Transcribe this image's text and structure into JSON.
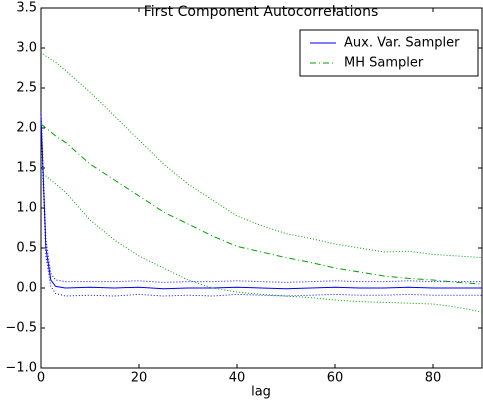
{
  "chart_data": {
    "type": "line",
    "title": "First Component Autocorrelations",
    "x_label": "lag",
    "x": [
      0,
      1,
      2,
      3,
      5,
      10,
      15,
      20,
      25,
      30,
      35,
      40,
      45,
      50,
      55,
      60,
      65,
      70,
      75,
      80,
      85,
      90
    ],
    "series": [
      {
        "name": "Aux. Var. Sampler",
        "color": "#0000ff",
        "style": "solid",
        "values": [
          2.15,
          0.5,
          0.1,
          0.02,
          0.0,
          0.01,
          0.0,
          0.01,
          -0.01,
          0.0,
          0.0,
          0.01,
          0.0,
          -0.01,
          0.0,
          0.01,
          0.0,
          0.0,
          0.01,
          0.0,
          0.0,
          0.0
        ],
        "upper": [
          2.2,
          0.6,
          0.18,
          0.1,
          0.08,
          0.08,
          0.08,
          0.09,
          0.07,
          0.08,
          0.08,
          0.09,
          0.08,
          0.07,
          0.08,
          0.09,
          0.08,
          0.08,
          0.09,
          0.08,
          0.08,
          0.08
        ],
        "lower": [
          2.05,
          0.4,
          0.02,
          -0.07,
          -0.1,
          -0.09,
          -0.1,
          -0.08,
          -0.1,
          -0.09,
          -0.1,
          -0.08,
          -0.09,
          -0.1,
          -0.09,
          -0.08,
          -0.09,
          -0.09,
          -0.08,
          -0.09,
          -0.09,
          -0.09
        ]
      },
      {
        "name": "MH Sampler",
        "color": "#00a000",
        "style": "dashdot",
        "values": [
          2.05,
          2.0,
          1.95,
          1.9,
          1.82,
          1.55,
          1.35,
          1.15,
          0.95,
          0.8,
          0.65,
          0.52,
          0.45,
          0.38,
          0.32,
          0.25,
          0.2,
          0.15,
          0.12,
          0.1,
          0.07,
          0.05
        ],
        "upper": [
          2.95,
          2.9,
          2.86,
          2.82,
          2.72,
          2.45,
          2.15,
          1.85,
          1.55,
          1.3,
          1.1,
          0.9,
          0.78,
          0.68,
          0.62,
          0.55,
          0.5,
          0.45,
          0.46,
          0.42,
          0.4,
          0.38
        ],
        "lower": [
          1.45,
          1.4,
          1.35,
          1.3,
          1.2,
          0.85,
          0.6,
          0.4,
          0.25,
          0.1,
          0.0,
          -0.05,
          -0.08,
          -0.1,
          -0.12,
          -0.15,
          -0.17,
          -0.18,
          -0.19,
          -0.2,
          -0.24,
          -0.3
        ]
      }
    ],
    "xlim": [
      0,
      90
    ],
    "xticks": [
      0,
      20,
      40,
      60,
      80
    ],
    "ylim": [
      -1,
      3.5
    ],
    "yticks": [
      {
        "value": -1,
        "label": "−1.0"
      },
      {
        "value": -0.5,
        "label": "−0.5"
      },
      {
        "value": 0,
        "label": "0.0"
      },
      {
        "value": 0.5,
        "label": "0.5"
      },
      {
        "value": 1,
        "label": "1.0"
      },
      {
        "value": 1.5,
        "label": "1.5"
      },
      {
        "value": 2,
        "label": "2.0"
      },
      {
        "value": 2.5,
        "label": "2.5"
      },
      {
        "value": 3,
        "label": "3.0"
      },
      {
        "value": 3.5,
        "label": "3.5"
      }
    ],
    "legend": "upper right"
  }
}
